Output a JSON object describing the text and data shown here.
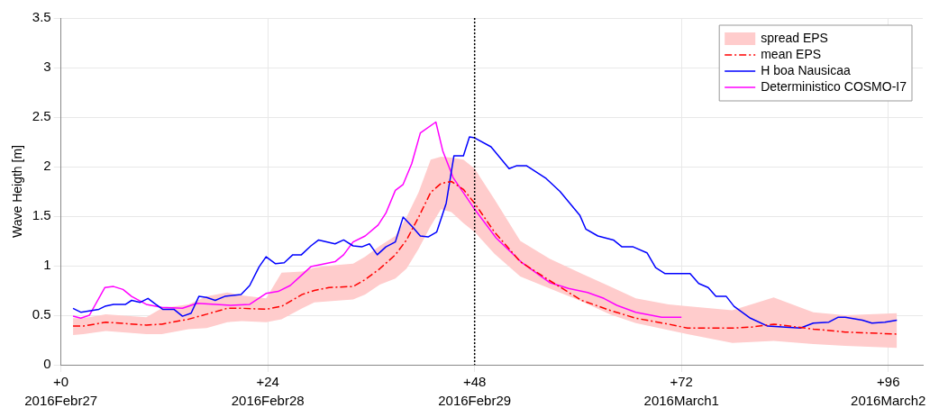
{
  "chart_data": {
    "type": "line",
    "ylabel": "Wave Heigth [m]",
    "xlim": [
      0,
      100
    ],
    "ylim": [
      0,
      3.5
    ],
    "xticks": [
      {
        "value": 0,
        "label": "+0"
      },
      {
        "value": 24,
        "label": "+24"
      },
      {
        "value": 48,
        "label": "+48"
      },
      {
        "value": 72,
        "label": "+72"
      },
      {
        "value": 96,
        "label": "+96"
      }
    ],
    "x2lim": [
      "2016-02-27T00:00",
      "2016-03-02T04:00"
    ],
    "x2ticks": [
      {
        "value": "2016-02-27",
        "label": "2016Febr27"
      },
      {
        "value": "2016-02-28",
        "label": "2016Febr28"
      },
      {
        "value": "2016-02-29",
        "label": "2016Febr29"
      },
      {
        "value": "2016-03-01",
        "label": "2016March1"
      },
      {
        "value": "2016-03-02",
        "label": "2016March2"
      }
    ],
    "yticks": [
      0,
      0.5,
      1,
      1.5,
      2,
      2.5,
      3,
      3.5
    ],
    "grid": true,
    "legend": "top right",
    "marker": "none",
    "ref_lines": [
      {
        "axis": "x",
        "value": 48,
        "color": "#000000",
        "line_style": "dotted"
      }
    ],
    "series": [
      {
        "name": "spread EPS",
        "type": "area",
        "color": "#ffcccc"
      },
      {
        "name": "mean EPS",
        "color": "#ff0000",
        "line_style": "dashed",
        "x": [
          1.4,
          2.6,
          5.2,
          9.9,
          11.7,
          14.8,
          16.9,
          19.3,
          21,
          23.8,
          25.6,
          28,
          29.4,
          31.1,
          33.9,
          35.3,
          37,
          38.8,
          40.1,
          41.5,
          42.9,
          44.1,
          45.3,
          46.7,
          48,
          50.3,
          53.3,
          56.7,
          60.4,
          63.7,
          66.7,
          70.5,
          72.7,
          77.9,
          80.1,
          82.7,
          87.3,
          91,
          97
        ],
        "values": [
          0.39,
          0.39,
          0.43,
          0.4,
          0.41,
          0.46,
          0.51,
          0.57,
          0.57,
          0.56,
          0.59,
          0.71,
          0.75,
          0.78,
          0.79,
          0.86,
          0.97,
          1.11,
          1.26,
          1.49,
          1.74,
          1.83,
          1.85,
          1.77,
          1.63,
          1.34,
          1.04,
          0.85,
          0.65,
          0.55,
          0.47,
          0.41,
          0.37,
          0.37,
          0.38,
          0.41,
          0.36,
          0.33,
          0.31
        ],
        "lower": [
          0.3,
          0.31,
          0.34,
          0.31,
          0.31,
          0.36,
          0.37,
          0.43,
          0.44,
          0.43,
          0.46,
          0.57,
          0.63,
          0.64,
          0.66,
          0.71,
          0.81,
          0.87,
          0.97,
          1.17,
          1.4,
          1.57,
          1.54,
          1.43,
          1.34,
          1.12,
          0.89,
          0.77,
          0.64,
          0.51,
          0.42,
          0.35,
          0.31,
          0.22,
          0.23,
          0.24,
          0.21,
          0.19,
          0.17
        ],
        "upper": [
          0.47,
          0.47,
          0.51,
          0.48,
          0.57,
          0.61,
          0.69,
          0.73,
          0.7,
          0.67,
          0.93,
          0.94,
          0.98,
          1.0,
          1.02,
          1.09,
          1.2,
          1.3,
          1.49,
          1.74,
          2.07,
          2.1,
          2.09,
          2.07,
          1.98,
          1.67,
          1.25,
          1.07,
          0.92,
          0.79,
          0.67,
          0.61,
          0.59,
          0.55,
          0.61,
          0.68,
          0.53,
          0.5,
          0.52
        ]
      },
      {
        "name": "H boa Nausicaa",
        "color": "#0000ff",
        "line_style": "solid",
        "x": [
          1.4,
          2.3,
          4.4,
          5.1,
          6.1,
          7.5,
          8.2,
          9.2,
          10.1,
          11,
          11.8,
          13.1,
          14.1,
          15.1,
          16,
          16.9,
          17.9,
          19,
          20.9,
          21.9,
          23,
          23.8,
          24.9,
          25.9,
          26.9,
          27.9,
          29,
          29.9,
          31.8,
          32.8,
          33.9,
          34.9,
          35.8,
          36.7,
          37.7,
          38.8,
          39.7,
          40.8,
          41.7,
          42.6,
          43.6,
          44.7,
          45.6,
          46.7,
          47.4,
          48,
          49.9,
          52,
          52.9,
          54,
          56.3,
          57.9,
          60.2,
          60.9,
          62.3,
          64.1,
          65.1,
          66.4,
          68,
          69,
          70.1,
          72,
          73,
          74,
          75.1,
          76,
          77.2,
          78.1,
          80,
          82,
          85.8,
          87.3,
          89.1,
          90.2,
          91,
          93,
          94.1,
          95.6,
          97
        ],
        "values": [
          0.57,
          0.53,
          0.56,
          0.59,
          0.61,
          0.61,
          0.65,
          0.63,
          0.67,
          0.61,
          0.56,
          0.56,
          0.49,
          0.52,
          0.69,
          0.68,
          0.65,
          0.69,
          0.71,
          0.8,
          0.99,
          1.09,
          1.02,
          1.03,
          1.11,
          1.11,
          1.2,
          1.26,
          1.22,
          1.26,
          1.2,
          1.19,
          1.22,
          1.11,
          1.19,
          1.24,
          1.49,
          1.39,
          1.3,
          1.29,
          1.34,
          1.63,
          2.11,
          2.11,
          2.3,
          2.29,
          2.2,
          1.98,
          2.01,
          2.01,
          1.88,
          1.75,
          1.51,
          1.37,
          1.3,
          1.26,
          1.19,
          1.19,
          1.13,
          0.98,
          0.92,
          0.92,
          0.92,
          0.82,
          0.78,
          0.69,
          0.69,
          0.59,
          0.47,
          0.39,
          0.37,
          0.42,
          0.43,
          0.48,
          0.48,
          0.45,
          0.42,
          0.43,
          0.45
        ]
      },
      {
        "name": "Deterministico COSMO-I7",
        "color": "#ff00ff",
        "line_style": "solid",
        "x": [
          1.4,
          2.3,
          3.3,
          5.1,
          6.1,
          7.2,
          8.2,
          9.9,
          11.7,
          14.1,
          15.8,
          19.7,
          21.9,
          23.8,
          25.2,
          26.6,
          28,
          29,
          31.8,
          32.8,
          33.9,
          35.3,
          36.8,
          37.7,
          38.8,
          39.7,
          40.7,
          41.7,
          43.5,
          44.3,
          45.5,
          48,
          50.5,
          53.5,
          56.7,
          58.9,
          61.1,
          63,
          64.5,
          66.7,
          69.7,
          72
        ],
        "values": [
          0.49,
          0.47,
          0.5,
          0.78,
          0.79,
          0.76,
          0.69,
          0.61,
          0.58,
          0.57,
          0.62,
          0.6,
          0.61,
          0.72,
          0.74,
          0.8,
          0.91,
          0.99,
          1.04,
          1.11,
          1.24,
          1.3,
          1.41,
          1.53,
          1.76,
          1.82,
          2.03,
          2.34,
          2.45,
          2.16,
          1.89,
          1.57,
          1.28,
          1.03,
          0.83,
          0.77,
          0.73,
          0.67,
          0.6,
          0.53,
          0.48,
          0.48
        ]
      }
    ]
  }
}
